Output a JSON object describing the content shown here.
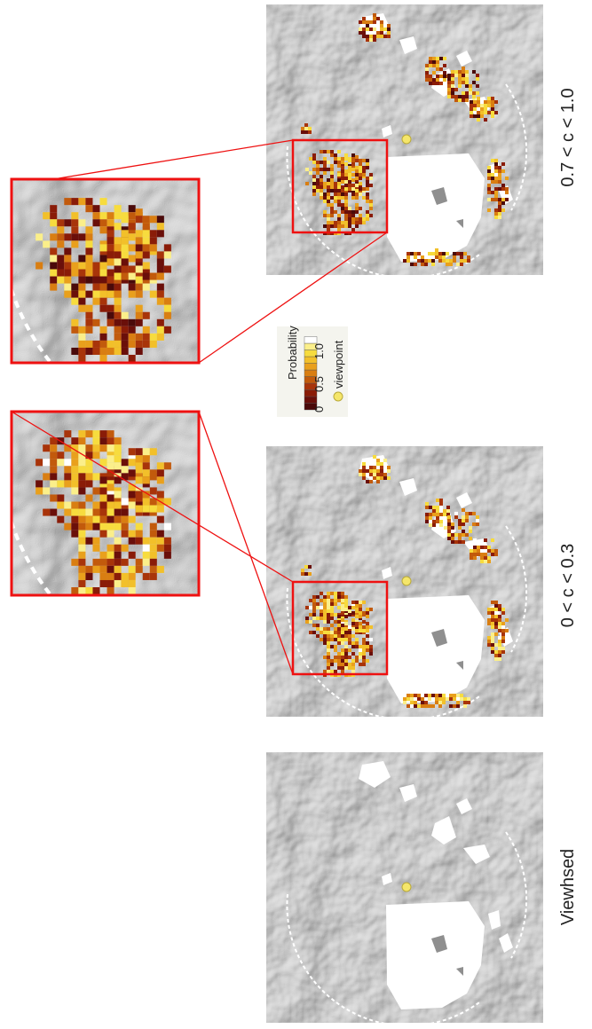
{
  "panels": [
    {
      "label": "0.7 < c < 1.0"
    },
    {
      "label": "0 < c < 0.3"
    },
    {
      "label": "Viewhsed"
    }
  ],
  "legend": {
    "title": "Probability",
    "ticks": [
      "0",
      "0.5",
      "1.0"
    ],
    "viewpoint": "viewpoint"
  }
}
